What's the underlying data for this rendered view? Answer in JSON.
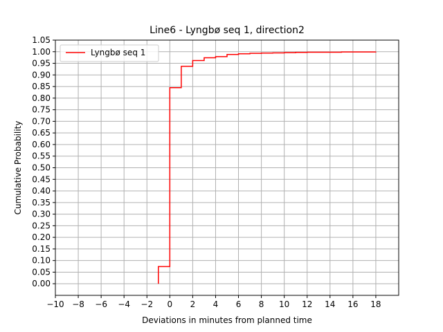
{
  "chart_data": {
    "type": "line",
    "title": "Line6 - Lyngbø seq 1, direction2",
    "xlabel": "Deviations in minutes from planned time",
    "ylabel": "Cumulative Probability",
    "xlim": [
      -10,
      20
    ],
    "ylim": [
      -0.05,
      1.05
    ],
    "xticks": [
      -10,
      -8,
      -6,
      -4,
      -2,
      0,
      2,
      4,
      6,
      8,
      10,
      12,
      14,
      16,
      18
    ],
    "yticks": [
      0.0,
      0.05,
      0.1,
      0.15,
      0.2,
      0.25,
      0.3,
      0.35,
      0.4,
      0.45,
      0.5,
      0.55,
      0.6,
      0.65,
      0.7,
      0.75,
      0.8,
      0.85,
      0.9,
      0.95,
      1.0,
      1.05
    ],
    "grid": true,
    "legend_position": "upper left",
    "series": [
      {
        "name": "Lyngbø seq 1",
        "color": "#ff0000",
        "step": true,
        "x": [
          -1,
          0,
          1,
          2,
          3,
          4,
          5,
          6,
          7,
          8,
          9,
          10,
          11,
          12,
          13,
          14,
          15,
          16,
          17,
          18
        ],
        "y": [
          0.074,
          0.845,
          0.937,
          0.962,
          0.974,
          0.979,
          0.988,
          0.991,
          0.993,
          0.994,
          0.995,
          0.996,
          0.997,
          0.998,
          0.998,
          0.998,
          0.999,
          0.999,
          0.999,
          1.0
        ]
      }
    ]
  }
}
